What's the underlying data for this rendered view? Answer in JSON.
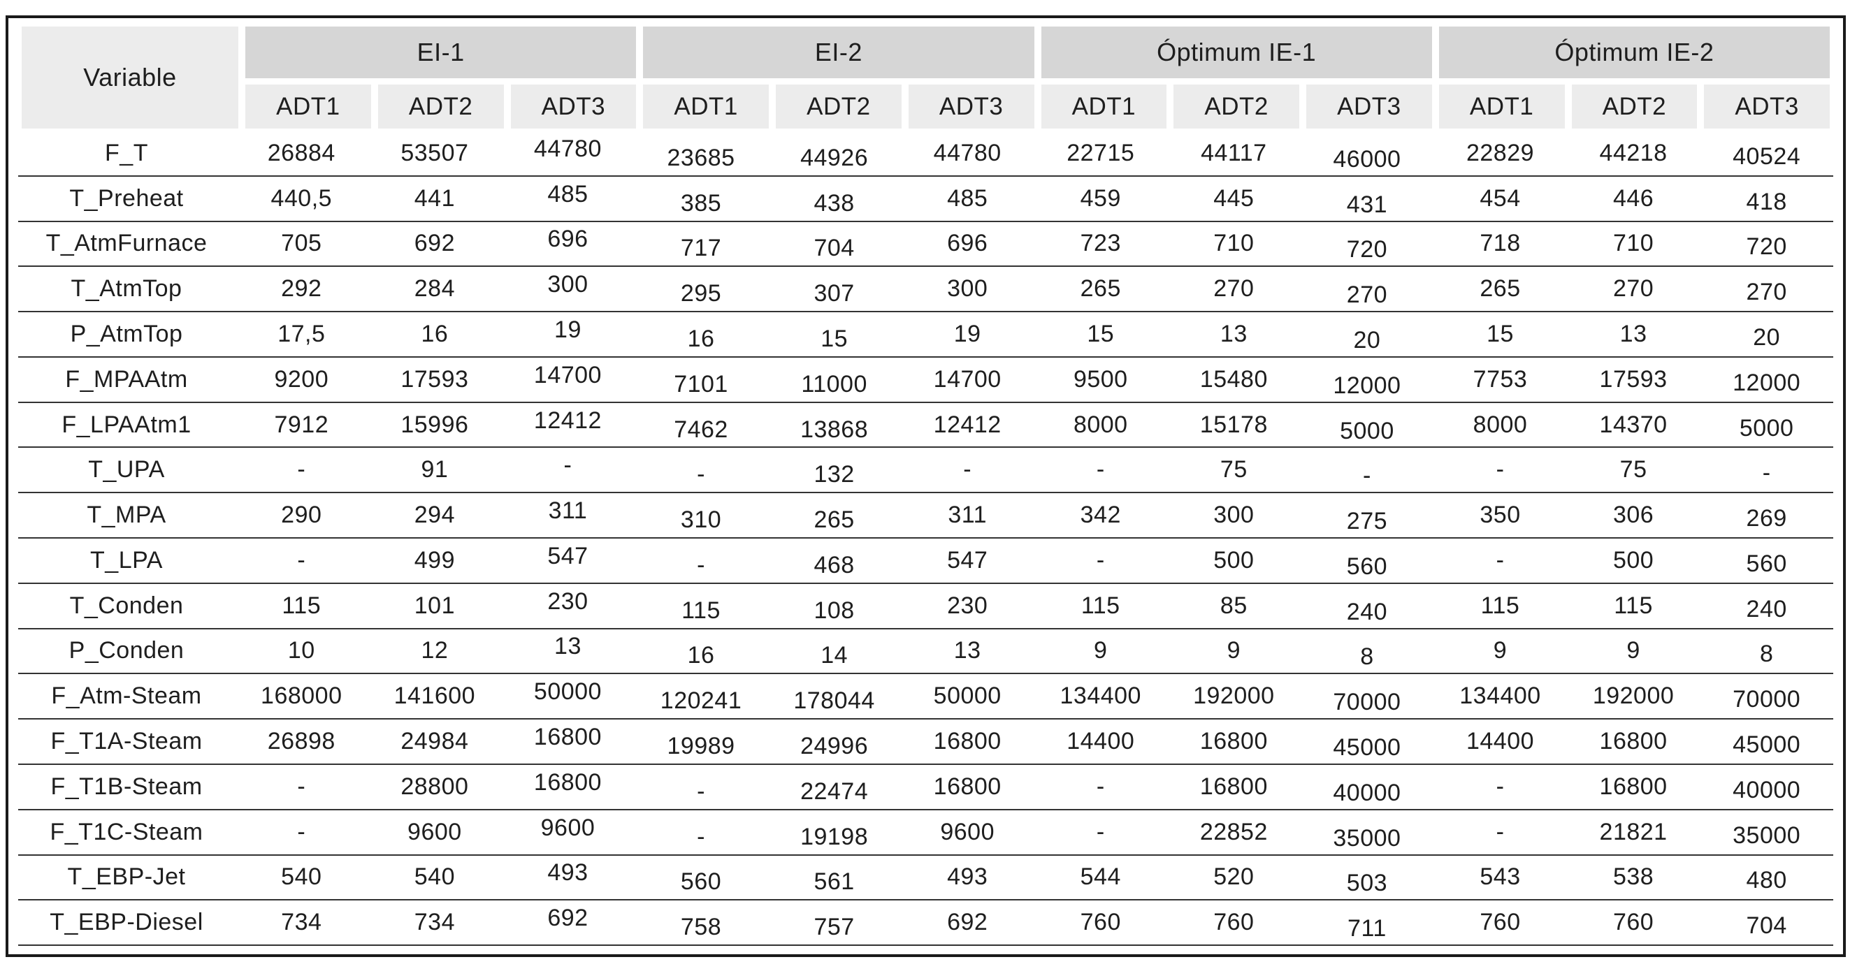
{
  "style": {
    "frame_border": "#1a1a1a",
    "group_header_bg": "#d6d6d6",
    "subheader_bg": "#ececec",
    "row_line": "#333333",
    "text": "#1e1e1e"
  },
  "table": {
    "corner_header": "Variable",
    "groups": [
      {
        "label": "EI-1",
        "subcolumns": [
          "ADT1",
          "ADT2",
          "ADT3"
        ]
      },
      {
        "label": "EI-2",
        "subcolumns": [
          "ADT1",
          "ADT2",
          "ADT3"
        ]
      },
      {
        "label": "Óptimum IE-1",
        "subcolumns": [
          "ADT1",
          "ADT2",
          "ADT3"
        ]
      },
      {
        "label": "Óptimum IE-2",
        "subcolumns": [
          "ADT1",
          "ADT2",
          "ADT3"
        ]
      }
    ],
    "rows": [
      {
        "variable": "F_T",
        "values": [
          "26884",
          "53507",
          "44780",
          "23685",
          "44926",
          "44780",
          "22715",
          "44117",
          "46000",
          "22829",
          "44218",
          "40524"
        ]
      },
      {
        "variable": "T_Preheat",
        "values": [
          "440,5",
          "441",
          "485",
          "385",
          "438",
          "485",
          "459",
          "445",
          "431",
          "454",
          "446",
          "418"
        ]
      },
      {
        "variable": "T_AtmFurnace",
        "values": [
          "705",
          "692",
          "696",
          "717",
          "704",
          "696",
          "723",
          "710",
          "720",
          "718",
          "710",
          "720"
        ]
      },
      {
        "variable": "T_AtmTop",
        "values": [
          "292",
          "284",
          "300",
          "295",
          "307",
          "300",
          "265",
          "270",
          "270",
          "265",
          "270",
          "270"
        ]
      },
      {
        "variable": "P_AtmTop",
        "values": [
          "17,5",
          "16",
          "19",
          "16",
          "15",
          "19",
          "15",
          "13",
          "20",
          "15",
          "13",
          "20"
        ]
      },
      {
        "variable": "F_MPAAtm",
        "values": [
          "9200",
          "17593",
          "14700",
          "7101",
          "11000",
          "14700",
          "9500",
          "15480",
          "12000",
          "7753",
          "17593",
          "12000"
        ]
      },
      {
        "variable": "F_LPAAtm1",
        "values": [
          "7912",
          "15996",
          "12412",
          "7462",
          "13868",
          "12412",
          "8000",
          "15178",
          "5000",
          "8000",
          "14370",
          "5000"
        ]
      },
      {
        "variable": "T_UPA",
        "values": [
          "-",
          "91",
          "-",
          "-",
          "132",
          "-",
          "-",
          "75",
          "-",
          "-",
          "75",
          "-"
        ]
      },
      {
        "variable": "T_MPA",
        "values": [
          "290",
          "294",
          "311",
          "310",
          "265",
          "311",
          "342",
          "300",
          "275",
          "350",
          "306",
          "269"
        ]
      },
      {
        "variable": "T_LPA",
        "values": [
          "-",
          "499",
          "547",
          "-",
          "468",
          "547",
          "-",
          "500",
          "560",
          "-",
          "500",
          "560"
        ]
      },
      {
        "variable": "T_Conden",
        "values": [
          "115",
          "101",
          "230",
          "115",
          "108",
          "230",
          "115",
          "85",
          "240",
          "115",
          "115",
          "240"
        ]
      },
      {
        "variable": "P_Conden",
        "values": [
          "10",
          "12",
          "13",
          "16",
          "14",
          "13",
          "9",
          "9",
          "8",
          "9",
          "9",
          "8"
        ]
      },
      {
        "variable": "F_Atm-Steam",
        "values": [
          "168000",
          "141600",
          "50000",
          "120241",
          "178044",
          "50000",
          "134400",
          "192000",
          "70000",
          "134400",
          "192000",
          "70000"
        ]
      },
      {
        "variable": "F_T1A-Steam",
        "values": [
          "26898",
          "24984",
          "16800",
          "19989",
          "24996",
          "16800",
          "14400",
          "16800",
          "45000",
          "14400",
          "16800",
          "45000"
        ]
      },
      {
        "variable": "F_T1B-Steam",
        "values": [
          "-",
          "28800",
          "16800",
          "-",
          "22474",
          "16800",
          "-",
          "16800",
          "40000",
          "-",
          "16800",
          "40000"
        ]
      },
      {
        "variable": "F_T1C-Steam",
        "values": [
          "-",
          "9600",
          "9600",
          "-",
          "19198",
          "9600",
          "-",
          "22852",
          "35000",
          "-",
          "21821",
          "35000"
        ]
      },
      {
        "variable": "T_EBP-Jet",
        "values": [
          "540",
          "540",
          "493",
          "560",
          "561",
          "493",
          "544",
          "520",
          "503",
          "543",
          "538",
          "480"
        ]
      },
      {
        "variable": "T_EBP-Diesel",
        "values": [
          "734",
          "734",
          "692",
          "758",
          "757",
          "692",
          "760",
          "760",
          "711",
          "760",
          "760",
          "704"
        ]
      }
    ]
  }
}
